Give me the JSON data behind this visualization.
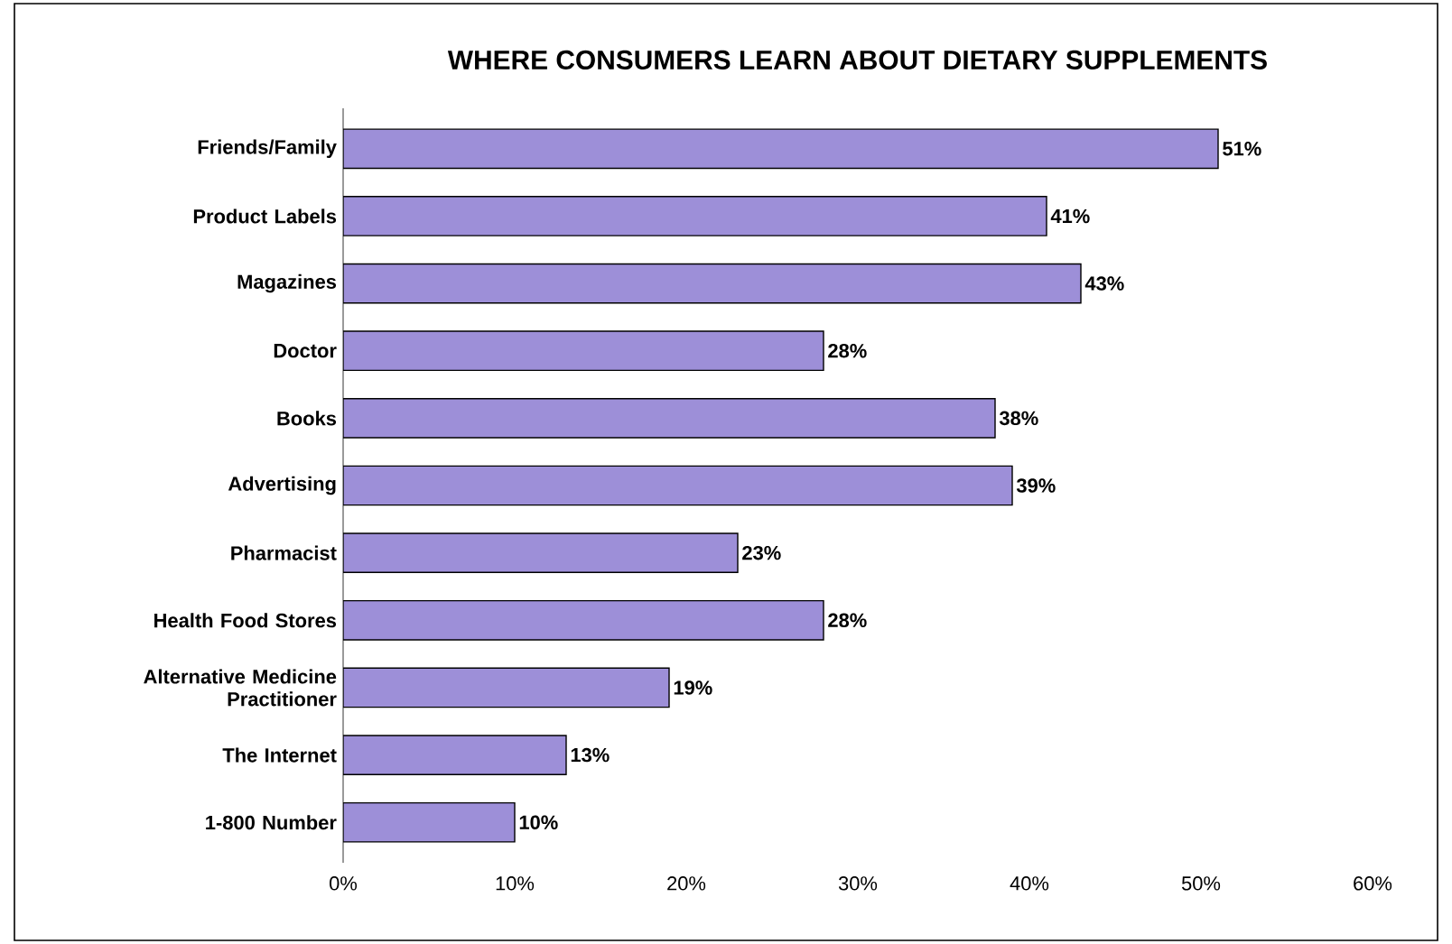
{
  "chart_data": {
    "type": "bar",
    "orientation": "horizontal",
    "title": "WHERE CONSUMERS LEARN ABOUT DIETARY SUPPLEMENTS",
    "categories": [
      "Friends/Family",
      "Product Labels",
      "Magazines",
      "Doctor",
      "Books",
      "Advertising",
      "Pharmacist",
      "Health Food Stores",
      "Alternative Medicine Practitioner",
      "The Internet",
      "1-800 Number"
    ],
    "values": [
      51,
      41,
      43,
      28,
      38,
      39,
      23,
      28,
      19,
      13,
      10
    ],
    "value_labels": [
      "51%",
      "41%",
      "43%",
      "28%",
      "38%",
      "39%",
      "23%",
      "28%",
      "19%",
      "13%",
      "10%"
    ],
    "color": "#9d8fd8",
    "xlim": [
      0,
      60
    ],
    "xticks": [
      {
        "value": 0,
        "label": "0%"
      },
      {
        "value": 10,
        "label": "10%"
      },
      {
        "value": 20,
        "label": "20%"
      },
      {
        "value": 30,
        "label": "30%"
      },
      {
        "value": 40,
        "label": "40%"
      },
      {
        "value": 50,
        "label": "50%"
      },
      {
        "value": 60,
        "label": "60%"
      }
    ],
    "grid": false
  }
}
